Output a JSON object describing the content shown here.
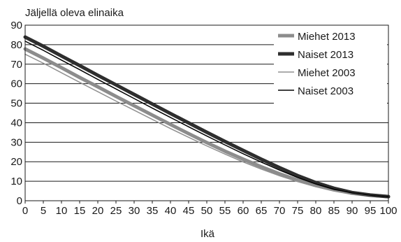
{
  "chart_data": {
    "type": "line",
    "title": "",
    "ylabel": "Jäljellä oleva elinaika",
    "xlabel": "Ikä",
    "xlim": [
      0,
      100
    ],
    "ylim": [
      0,
      90
    ],
    "x_ticks": [
      0,
      5,
      10,
      15,
      20,
      25,
      30,
      35,
      40,
      45,
      50,
      55,
      60,
      65,
      70,
      75,
      80,
      85,
      90,
      95,
      100
    ],
    "y_ticks": [
      0,
      10,
      20,
      30,
      40,
      50,
      60,
      70,
      80,
      90
    ],
    "grid": "horizontal",
    "legend_position": "top-right",
    "x": [
      0,
      5,
      10,
      15,
      20,
      25,
      30,
      35,
      40,
      45,
      50,
      55,
      60,
      65,
      70,
      75,
      80,
      85,
      90,
      95,
      100
    ],
    "series": [
      {
        "name": "Miehet 2013",
        "color": "#8c8c8c",
        "width": 5,
        "values": [
          77.8,
          73.1,
          68.2,
          63.2,
          58.4,
          53.5,
          48.7,
          43.9,
          39.1,
          34.4,
          29.8,
          25.4,
          21.3,
          17.4,
          13.8,
          10.6,
          7.8,
          5.6,
          3.9,
          2.8,
          2.1
        ]
      },
      {
        "name": "Naiset 2013",
        "color": "#2e2e2e",
        "width": 5,
        "values": [
          83.9,
          79.2,
          74.2,
          69.3,
          64.3,
          59.4,
          54.5,
          49.6,
          44.7,
          39.9,
          35.1,
          30.4,
          25.8,
          21.3,
          17.0,
          12.9,
          9.3,
          6.4,
          4.2,
          2.9,
          2.1
        ]
      },
      {
        "name": "Miehet 2003",
        "color": "#909090",
        "width": 1.5,
        "values": [
          75.1,
          70.5,
          65.6,
          60.7,
          55.9,
          51.1,
          46.4,
          41.7,
          37.0,
          32.5,
          28.1,
          23.9,
          19.9,
          16.2,
          12.8,
          9.8,
          7.2,
          5.2,
          3.7,
          2.7,
          2.0
        ]
      },
      {
        "name": "Naiset 2003",
        "color": "#000000",
        "width": 1.5,
        "values": [
          81.8,
          77.1,
          72.1,
          67.2,
          62.2,
          57.3,
          52.4,
          47.5,
          42.7,
          37.9,
          33.2,
          28.6,
          24.1,
          19.8,
          15.7,
          11.9,
          8.6,
          5.9,
          4.0,
          2.8,
          2.0
        ]
      }
    ]
  }
}
